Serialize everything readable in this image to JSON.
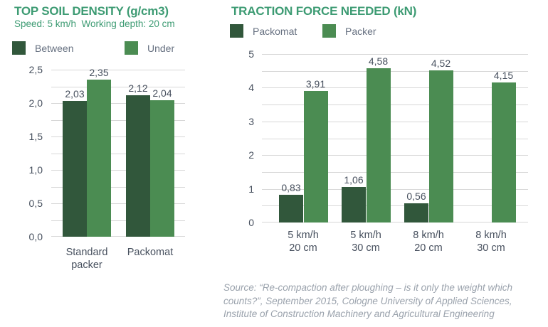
{
  "colors": {
    "title": "#3d9b73",
    "dark_green": "#31573b",
    "light_green": "#4b8c52",
    "axis_text": "#47505e",
    "legend_text": "#667080",
    "grid": "#d7d7d7",
    "source_text": "#9aa2ac",
    "background": "#ffffff"
  },
  "chart_data": [
    {
      "type": "bar",
      "title": "TOP SOIL DENSITY (g/cm3)",
      "subtitle": "Speed: 5 km/h  Working depth: 20 cm",
      "categories": [
        "Standard\npacker",
        "Packomat"
      ],
      "series": [
        {
          "name": "Between",
          "color_key": "dark_green",
          "values": [
            2.03,
            2.12
          ],
          "value_labels": [
            "2,03",
            "2,12"
          ]
        },
        {
          "name": "Under",
          "color_key": "light_green",
          "values": [
            2.35,
            2.04
          ],
          "value_labels": [
            "2,35",
            "2,04"
          ]
        }
      ],
      "ylim": [
        0,
        2.5
      ],
      "grid_step": 0.25,
      "ytick_values": [
        0,
        0.5,
        1,
        1.5,
        2,
        2.5
      ],
      "ytick_labels": [
        "0,0",
        "0,5",
        "1,0",
        "1,5",
        "2,0",
        "2,5"
      ],
      "grid": true,
      "legend_position": "top"
    },
    {
      "type": "bar",
      "title": "TRACTION FORCE NEEDED (kN)",
      "categories": [
        "5 km/h\n20 cm",
        "5 km/h\n30 cm",
        "8 km/h\n20 cm",
        "8 km/h\n30 cm"
      ],
      "series": [
        {
          "name": "Packomat",
          "color_key": "dark_green",
          "values": [
            0.83,
            1.06,
            0.56,
            null
          ],
          "value_labels": [
            "0,83",
            "1,06",
            "0,56",
            ""
          ]
        },
        {
          "name": "Packer",
          "color_key": "light_green",
          "values": [
            3.91,
            4.58,
            4.52,
            4.15
          ],
          "value_labels": [
            "3,91",
            "4,58",
            "4,52",
            "4,15"
          ]
        }
      ],
      "ylim": [
        0,
        5
      ],
      "grid_step": 0.5,
      "ytick_values": [
        0,
        1,
        2,
        3,
        4,
        5
      ],
      "ytick_labels": [
        "0",
        "1",
        "2",
        "3",
        "4",
        "5"
      ],
      "grid": true,
      "legend_position": "top"
    }
  ],
  "source": {
    "text": "Source: “Re-compaction after ploughing – is it only the weight which\ncounts?”, September 2015, Cologne University of Applied Sciences,\nInstitute of Construction Machinery and Agricultural Engineering"
  }
}
